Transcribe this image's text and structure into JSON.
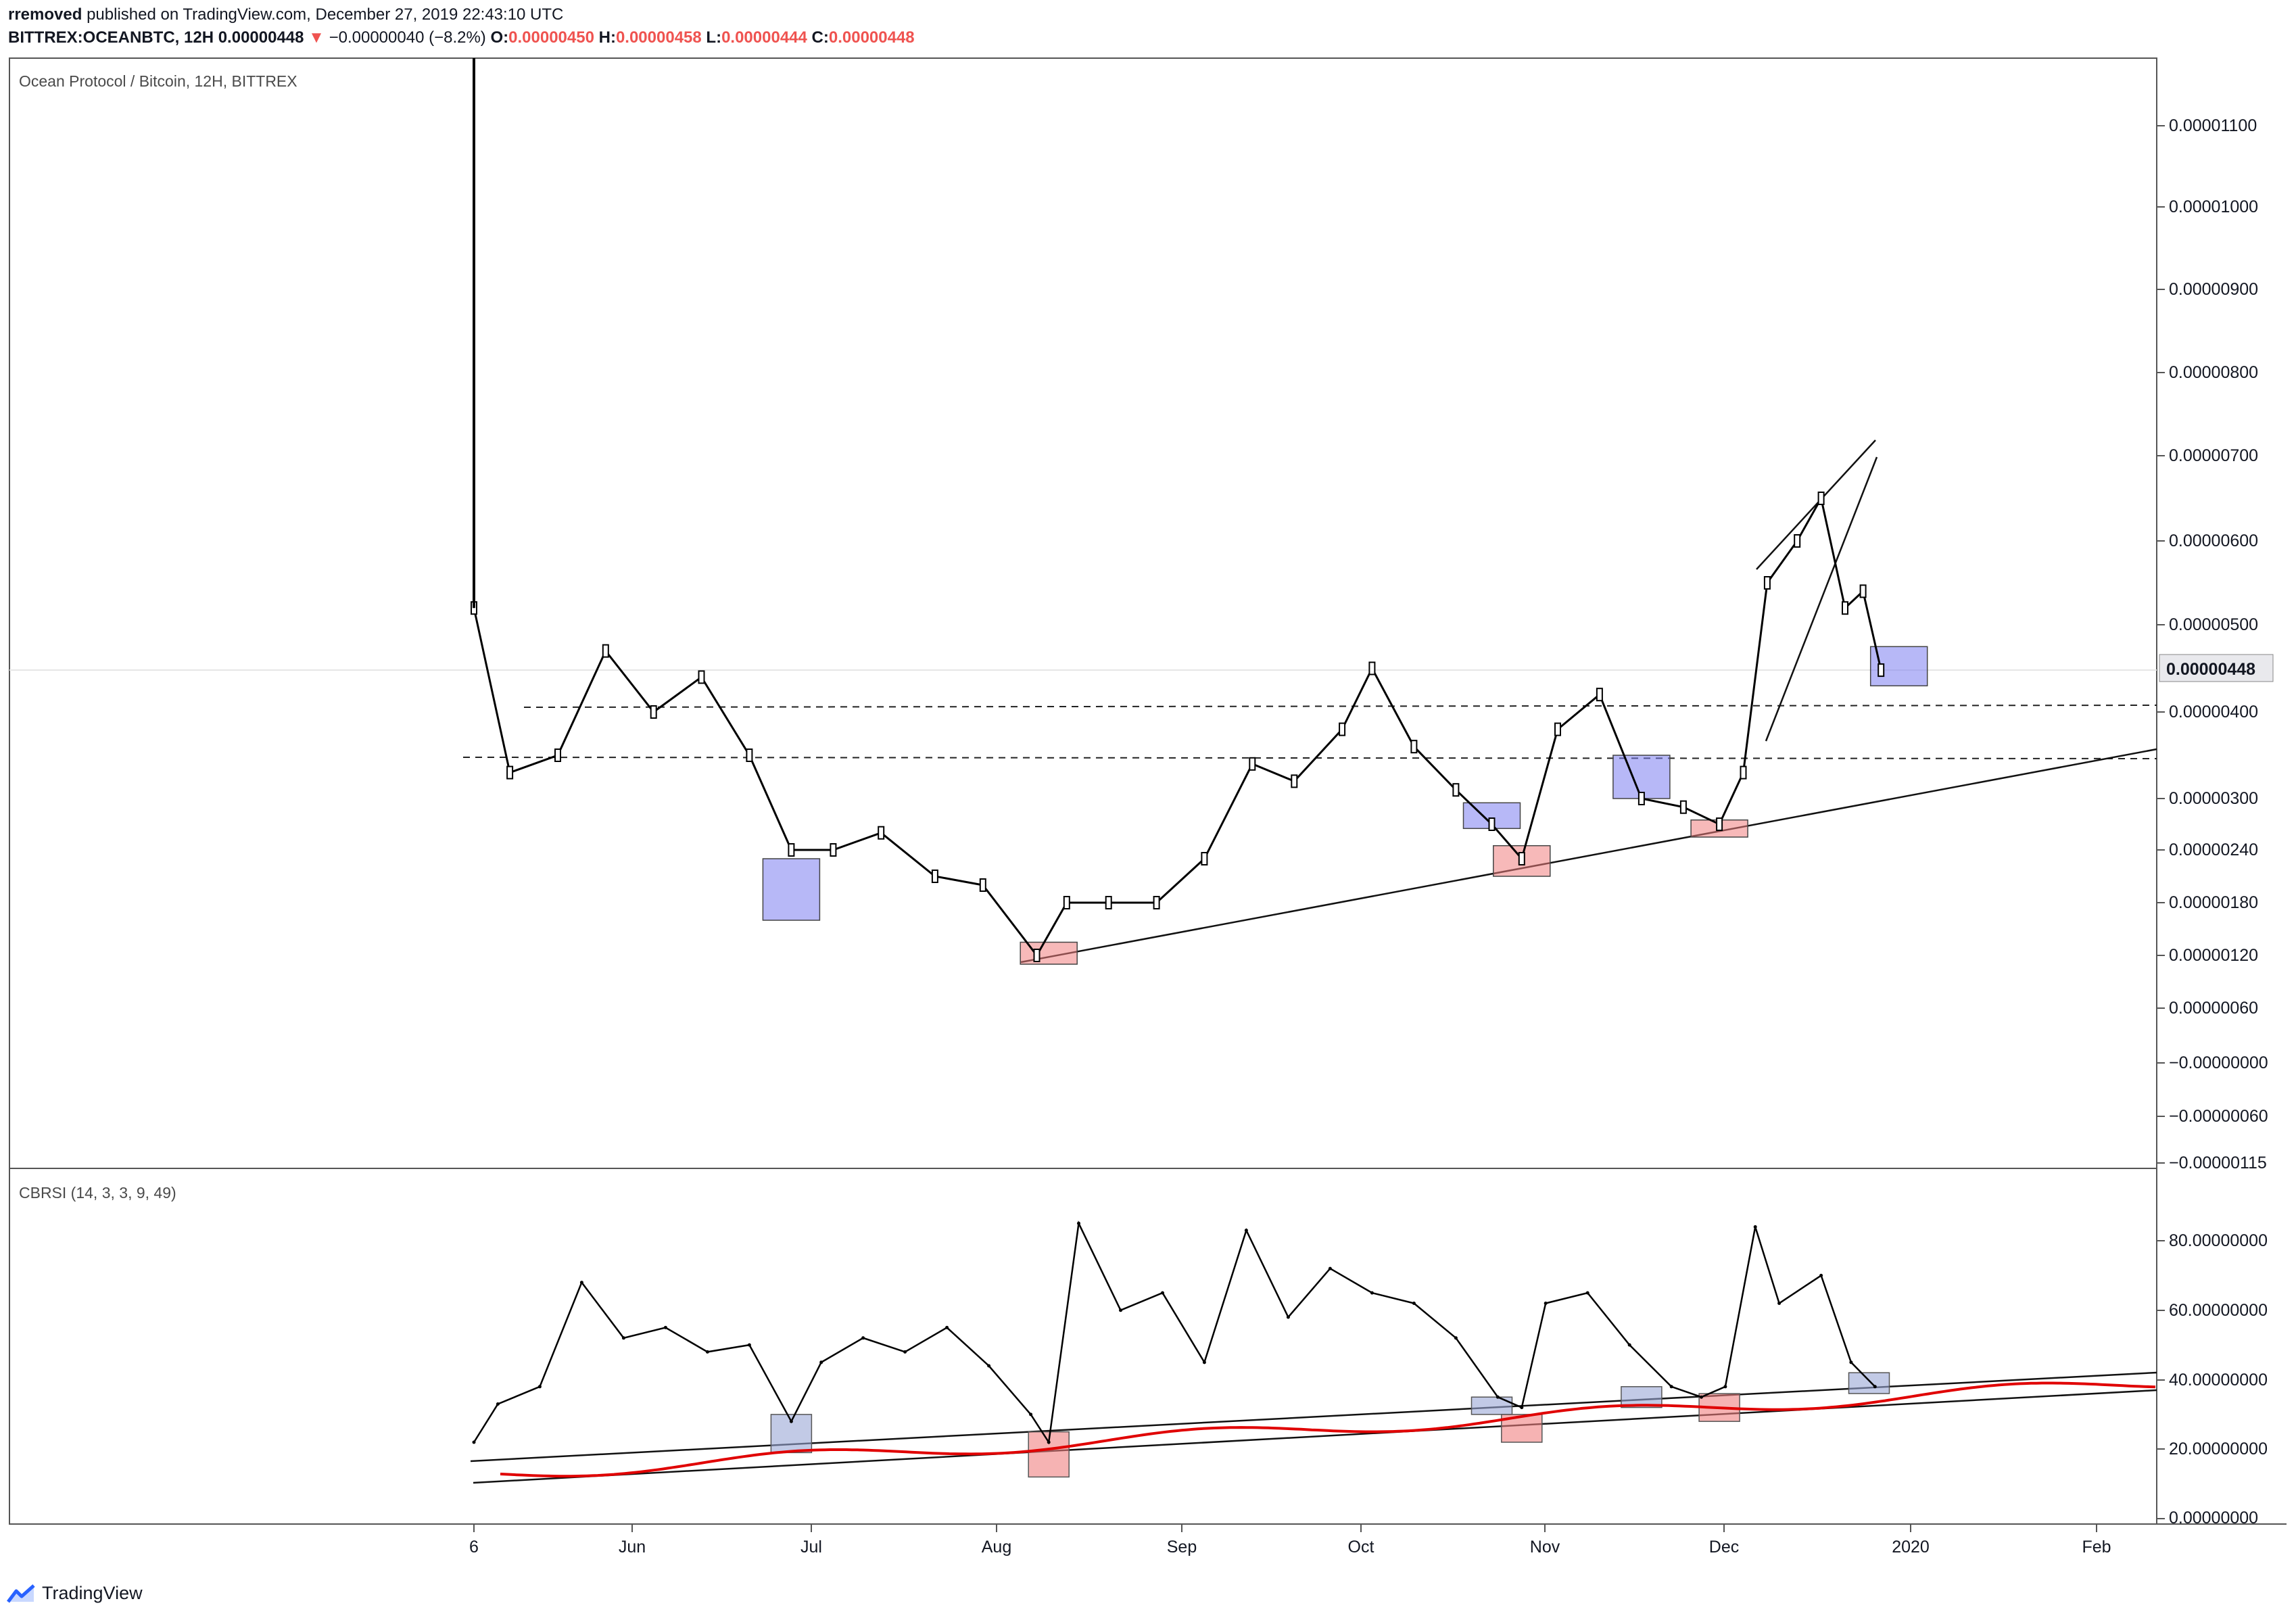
{
  "header": {
    "author": "rremoved",
    "published_text": "published on TradingView.com, December 27, 2019 22:43:10 UTC",
    "symbol_line": "BITTREX:OCEANBTC, 12H",
    "last_price": "0.00000448",
    "change_arrow": "▼",
    "change": "−0.00000040 (−8.2%)",
    "o_label": "O:",
    "o_value": "0.00000450",
    "h_label": "H:",
    "h_value": "0.00000458",
    "l_label": "L:",
    "l_value": "0.00000444",
    "c_label": "C:",
    "c_value": "0.00000448"
  },
  "price_pane": {
    "title": "Ocean Protocol / Bitcoin, 12H, BITTREX",
    "y_ticks": [
      "0.00001100",
      "0.00001000",
      "0.00000900",
      "0.00000800",
      "0.00000700",
      "0.00000600",
      "0.00000500",
      "0.00000400",
      "0.00000300",
      "0.00000240",
      "0.00000180",
      "0.00000120",
      "0.00000060",
      "−0.00000000",
      "−0.00000060",
      "−0.00000115"
    ],
    "last_price_label": "0.00000448"
  },
  "indicator_pane": {
    "title": "CBRSI (14, 3, 3, 9, 49)",
    "y_ticks": [
      "80.00000000",
      "60.00000000",
      "40.00000000",
      "20.00000000",
      "0.00000000"
    ]
  },
  "x_ticks": [
    "6",
    "Jun",
    "Jul",
    "Aug",
    "Sep",
    "Oct",
    "Nov",
    "Dec",
    "2020",
    "Feb"
  ],
  "brand": {
    "name": "TradingView",
    "icon": "tradingview-logo-icon"
  },
  "colors": {
    "up_down_candles": "#000000",
    "marker_blue": "#7b7ef0",
    "marker_red": "#f08080",
    "cbrsi_line": "#000000",
    "fast_ma": "#4caf50",
    "slow_ma": "#ef9a9a",
    "composite": "#e00000",
    "price_down": "#ef5350"
  },
  "chart_data": [
    {
      "type": "line",
      "title": "Ocean Protocol / Bitcoin, 12H, BITTREX",
      "x_dates": [
        "2019-05-06",
        "2019-05-12",
        "2019-05-20",
        "2019-05-28",
        "2019-06-05",
        "2019-06-13",
        "2019-06-21",
        "2019-06-28",
        "2019-07-05",
        "2019-07-13",
        "2019-07-22",
        "2019-07-30",
        "2019-08-08",
        "2019-08-13",
        "2019-08-20",
        "2019-08-28",
        "2019-09-05",
        "2019-09-13",
        "2019-09-20",
        "2019-09-28",
        "2019-10-03",
        "2019-10-10",
        "2019-10-17",
        "2019-10-23",
        "2019-10-28",
        "2019-11-03",
        "2019-11-10",
        "2019-11-17",
        "2019-11-24",
        "2019-11-30",
        "2019-12-04",
        "2019-12-08",
        "2019-12-13",
        "2019-12-17",
        "2019-12-21",
        "2019-12-24",
        "2019-12-27"
      ],
      "close": [
        5.2e-06,
        3.3e-06,
        3.5e-06,
        4.7e-06,
        4e-06,
        4.4e-06,
        3.5e-06,
        2.4e-06,
        2.4e-06,
        2.6e-06,
        2.1e-06,
        2e-06,
        1.2e-06,
        1.8e-06,
        1.8e-06,
        1.8e-06,
        2.3e-06,
        3.4e-06,
        3.2e-06,
        3.8e-06,
        4.5e-06,
        3.6e-06,
        3.1e-06,
        2.7e-06,
        2.3e-06,
        3.8e-06,
        4.2e-06,
        3e-06,
        2.9e-06,
        2.7e-06,
        3.3e-06,
        5.5e-06,
        6e-06,
        6.5e-06,
        5.2e-06,
        5.4e-06,
        4.48e-06
      ],
      "ylim": [
        -1.15e-06,
        1.2e-05
      ],
      "horizontal_levels": [
        4.1e-06,
        3.5e-06
      ],
      "markers": [
        {
          "date": "2019-06-28",
          "color": "blue",
          "low": 1.6e-06,
          "high": 2.3e-06
        },
        {
          "date": "2019-08-10",
          "color": "red",
          "low": 1.1e-06,
          "high": 1.35e-06
        },
        {
          "date": "2019-10-23",
          "color": "blue",
          "low": 2.65e-06,
          "high": 2.95e-06
        },
        {
          "date": "2019-10-28",
          "color": "red",
          "low": 2.1e-06,
          "high": 2.45e-06
        },
        {
          "date": "2019-11-17",
          "color": "blue",
          "low": 3e-06,
          "high": 3.5e-06
        },
        {
          "date": "2019-11-30",
          "color": "red",
          "low": 2.55e-06,
          "high": 2.75e-06
        },
        {
          "date": "2019-12-30",
          "color": "blue",
          "low": 4.3e-06,
          "high": 4.75e-06
        }
      ]
    },
    {
      "type": "line",
      "title": "CBRSI (14, 3, 3, 9, 49)",
      "ylim": [
        0,
        85
      ],
      "x_dates": [
        "2019-05-06",
        "2019-05-10",
        "2019-05-17",
        "2019-05-24",
        "2019-05-31",
        "2019-06-07",
        "2019-06-14",
        "2019-06-21",
        "2019-06-28",
        "2019-07-03",
        "2019-07-10",
        "2019-07-17",
        "2019-07-24",
        "2019-07-31",
        "2019-08-07",
        "2019-08-10",
        "2019-08-15",
        "2019-08-22",
        "2019-08-29",
        "2019-09-05",
        "2019-09-12",
        "2019-09-19",
        "2019-09-26",
        "2019-10-03",
        "2019-10-10",
        "2019-10-17",
        "2019-10-24",
        "2019-10-28",
        "2019-11-01",
        "2019-11-08",
        "2019-11-15",
        "2019-11-22",
        "2019-11-27",
        "2019-12-01",
        "2019-12-06",
        "2019-12-10",
        "2019-12-17",
        "2019-12-22",
        "2019-12-26"
      ],
      "series": [
        {
          "values": [
            22,
            33,
            38,
            68,
            52,
            55,
            48,
            50,
            28,
            45,
            52,
            48,
            55,
            44,
            30,
            22,
            85,
            60,
            65,
            45,
            83,
            58,
            72,
            65,
            62,
            52,
            35,
            32,
            62,
            65,
            50,
            38,
            35,
            38,
            84,
            62,
            70,
            45,
            38
          ]
        }
      ]
    }
  ]
}
